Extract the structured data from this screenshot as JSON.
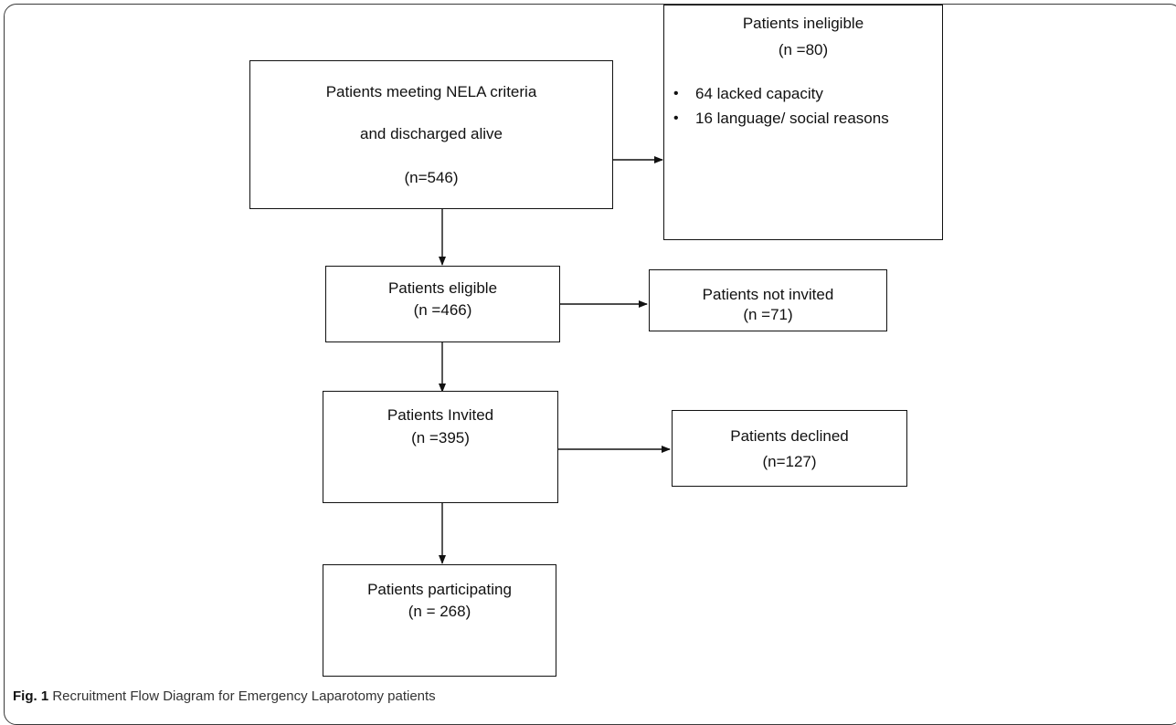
{
  "nodes": {
    "meeting": {
      "line1": "Patients meeting NELA criteria",
      "line2": "and discharged alive",
      "count": "(n=546)"
    },
    "ineligible": {
      "title": "Patients ineligible",
      "count": "(n =80)",
      "reasons": [
        "64 lacked capacity",
        "16 language/ social reasons"
      ]
    },
    "eligible": {
      "title": "Patients eligible",
      "count": "(n =466)"
    },
    "not_invited": {
      "title": "Patients not invited",
      "count": "(n =71)"
    },
    "invited": {
      "title": "Patients Invited",
      "count": "(n =395)"
    },
    "declined": {
      "title": "Patients declined",
      "count": "(n=127)"
    },
    "participating": {
      "title": "Patients participating",
      "count": "(n = 268)"
    }
  },
  "caption": {
    "label": "Fig. 1",
    "text": "Recruitment Flow Diagram for Emergency Laparotomy patients"
  }
}
